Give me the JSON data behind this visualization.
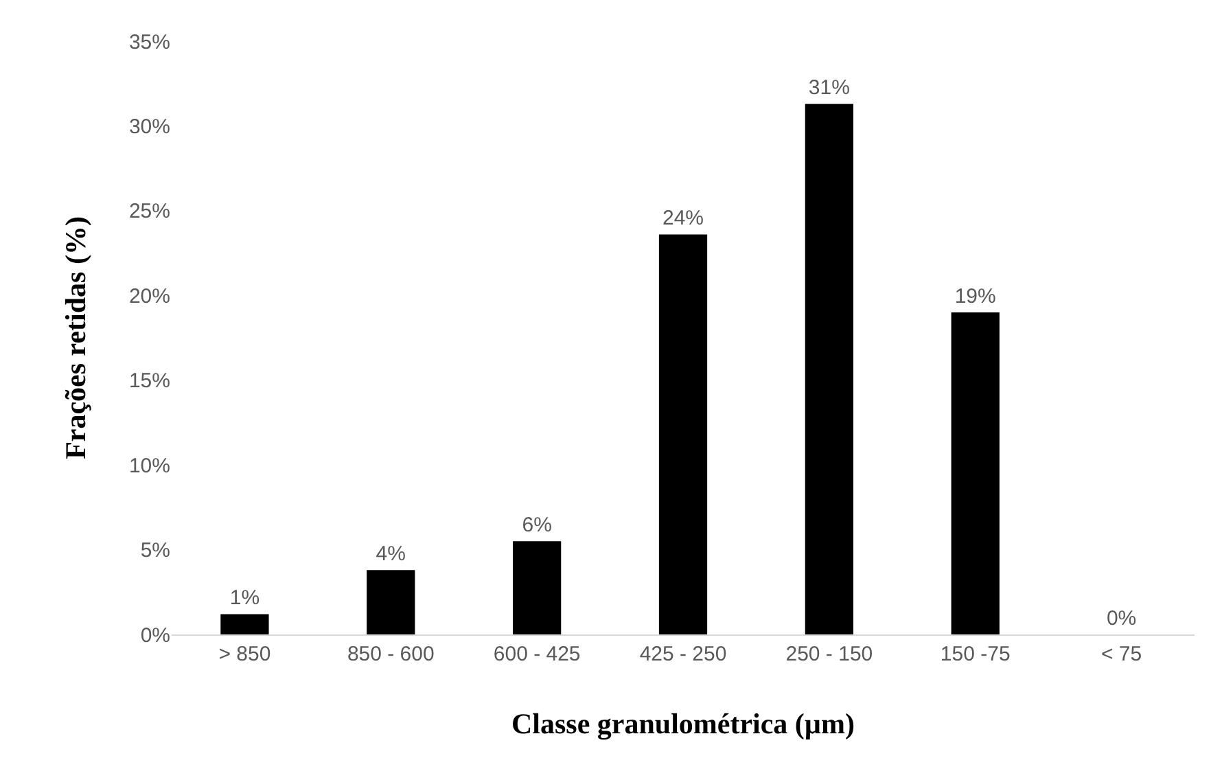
{
  "chart_data": {
    "type": "bar",
    "xlabel": "Classe granulométrica (µm)",
    "ylabel": "Frações retidas (%)",
    "categories": [
      "> 850",
      "850 - 600",
      "600 - 425",
      "425 - 250",
      "250 - 150",
      "150 -75",
      "< 75"
    ],
    "values": [
      1.2,
      3.8,
      5.5,
      23.6,
      31.3,
      19.0,
      0
    ],
    "value_labels": [
      "1%",
      "4%",
      "6%",
      "24%",
      "31%",
      "19%",
      "0%"
    ],
    "color": "#000000",
    "ylim": [
      0,
      35
    ],
    "yticks": [
      {
        "value": 0,
        "label": "0%"
      },
      {
        "value": 5,
        "label": "5%"
      },
      {
        "value": 10,
        "label": "10%"
      },
      {
        "value": 15,
        "label": "15%"
      },
      {
        "value": 20,
        "label": "20%"
      },
      {
        "value": 25,
        "label": "25%"
      },
      {
        "value": 30,
        "label": "30%"
      },
      {
        "value": 35,
        "label": "35%"
      }
    ],
    "grid": false,
    "legend": false
  }
}
